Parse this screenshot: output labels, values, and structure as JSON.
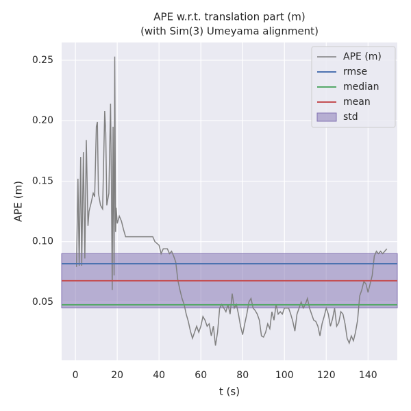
{
  "chart_data": {
    "type": "line",
    "title": [
      "APE w.r.t. translation part (m)",
      "(with Sim(3) Umeyama alignment)"
    ],
    "xlabel": "t (s)",
    "ylabel": "APE (m)",
    "xlim": [
      -6.6,
      154
    ],
    "ylim": [
      0.0018,
      0.2647
    ],
    "xticks": [
      0,
      20,
      40,
      60,
      80,
      100,
      120,
      140
    ],
    "yticks": [
      0.05,
      {
        "value": 0.1,
        "label": "0.10"
      },
      0.15,
      {
        "value": 0.2,
        "label": "0.20"
      },
      0.25
    ],
    "grid": true,
    "legend": "upper right",
    "x": [
      0.5,
      1.2,
      1.8,
      2.5,
      3,
      3.8,
      4.5,
      5.2,
      6,
      6.5,
      7.5,
      8.5,
      9.2,
      10,
      10.5,
      11,
      12,
      13,
      14,
      14.5,
      15,
      16,
      16.8,
      17.2,
      17.6,
      18,
      18.5,
      18.8,
      19.2,
      19.5,
      20,
      21,
      22,
      23,
      24,
      30,
      37,
      38,
      40,
      41,
      42,
      44,
      45,
      46,
      47,
      48,
      49,
      50,
      51,
      52,
      53,
      54,
      55,
      56,
      57,
      58,
      59,
      60,
      61,
      62,
      63,
      64,
      65,
      66,
      67,
      68,
      69,
      70,
      71,
      72,
      73,
      74,
      75,
      76,
      77,
      78,
      79,
      80,
      81,
      82,
      83,
      84,
      85,
      86,
      87,
      88,
      89,
      90,
      91,
      92,
      93,
      94,
      95,
      96,
      97,
      98,
      99,
      100,
      102,
      103,
      104,
      105,
      106,
      107,
      108,
      109,
      110,
      111,
      112,
      113,
      114,
      115,
      116,
      117,
      118,
      119,
      120,
      121,
      122,
      123,
      124,
      125,
      126,
      127,
      128,
      129,
      130,
      131,
      132,
      133,
      134,
      135,
      136,
      137,
      138,
      139,
      140,
      141,
      142,
      143,
      144,
      145,
      146,
      147,
      148,
      149
    ],
    "series": [
      {
        "name": "APE (m)",
        "color": "#808080",
        "values": [
          0.079,
          0.152,
          0.08,
          0.17,
          0.08,
          0.174,
          0.086,
          0.184,
          0.113,
          0.125,
          0.132,
          0.14,
          0.137,
          0.195,
          0.199,
          0.14,
          0.13,
          0.127,
          0.208,
          0.19,
          0.13,
          0.14,
          0.214,
          0.15,
          0.06,
          0.195,
          0.072,
          0.253,
          0.108,
          0.128,
          0.115,
          0.121,
          0.117,
          0.11,
          0.104,
          0.104,
          0.104,
          0.1,
          0.097,
          0.09,
          0.094,
          0.094,
          0.09,
          0.092,
          0.088,
          0.083,
          0.068,
          0.06,
          0.053,
          0.048,
          0.04,
          0.034,
          0.026,
          0.02,
          0.025,
          0.03,
          0.025,
          0.03,
          0.038,
          0.035,
          0.03,
          0.032,
          0.022,
          0.03,
          0.014,
          0.025,
          0.045,
          0.048,
          0.045,
          0.042,
          0.048,
          0.04,
          0.057,
          0.045,
          0.048,
          0.04,
          0.03,
          0.023,
          0.032,
          0.04,
          0.05,
          0.053,
          0.045,
          0.043,
          0.04,
          0.035,
          0.022,
          0.021,
          0.025,
          0.032,
          0.028,
          0.042,
          0.035,
          0.048,
          0.04,
          0.042,
          0.04,
          0.045,
          0.045,
          0.04,
          0.034,
          0.026,
          0.04,
          0.045,
          0.05,
          0.045,
          0.048,
          0.053,
          0.045,
          0.04,
          0.035,
          0.034,
          0.03,
          0.022,
          0.032,
          0.038,
          0.045,
          0.04,
          0.03,
          0.036,
          0.045,
          0.03,
          0.033,
          0.042,
          0.04,
          0.032,
          0.02,
          0.016,
          0.022,
          0.018,
          0.025,
          0.035,
          0.055,
          0.06,
          0.067,
          0.065,
          0.058,
          0.065,
          0.072,
          0.088,
          0.092,
          0.09,
          0.092,
          0.09,
          0.092,
          0.094
        ]
      }
    ],
    "stats": [
      {
        "name": "rmse",
        "color": "#4c72b0",
        "value": 0.0817
      },
      {
        "name": "median",
        "color": "#55a868",
        "value": 0.0477
      },
      {
        "name": "mean",
        "color": "#c44e52",
        "value": 0.0676
      }
    ],
    "std": {
      "name": "std",
      "color": "#8172b2",
      "value": 0.0225
    }
  }
}
